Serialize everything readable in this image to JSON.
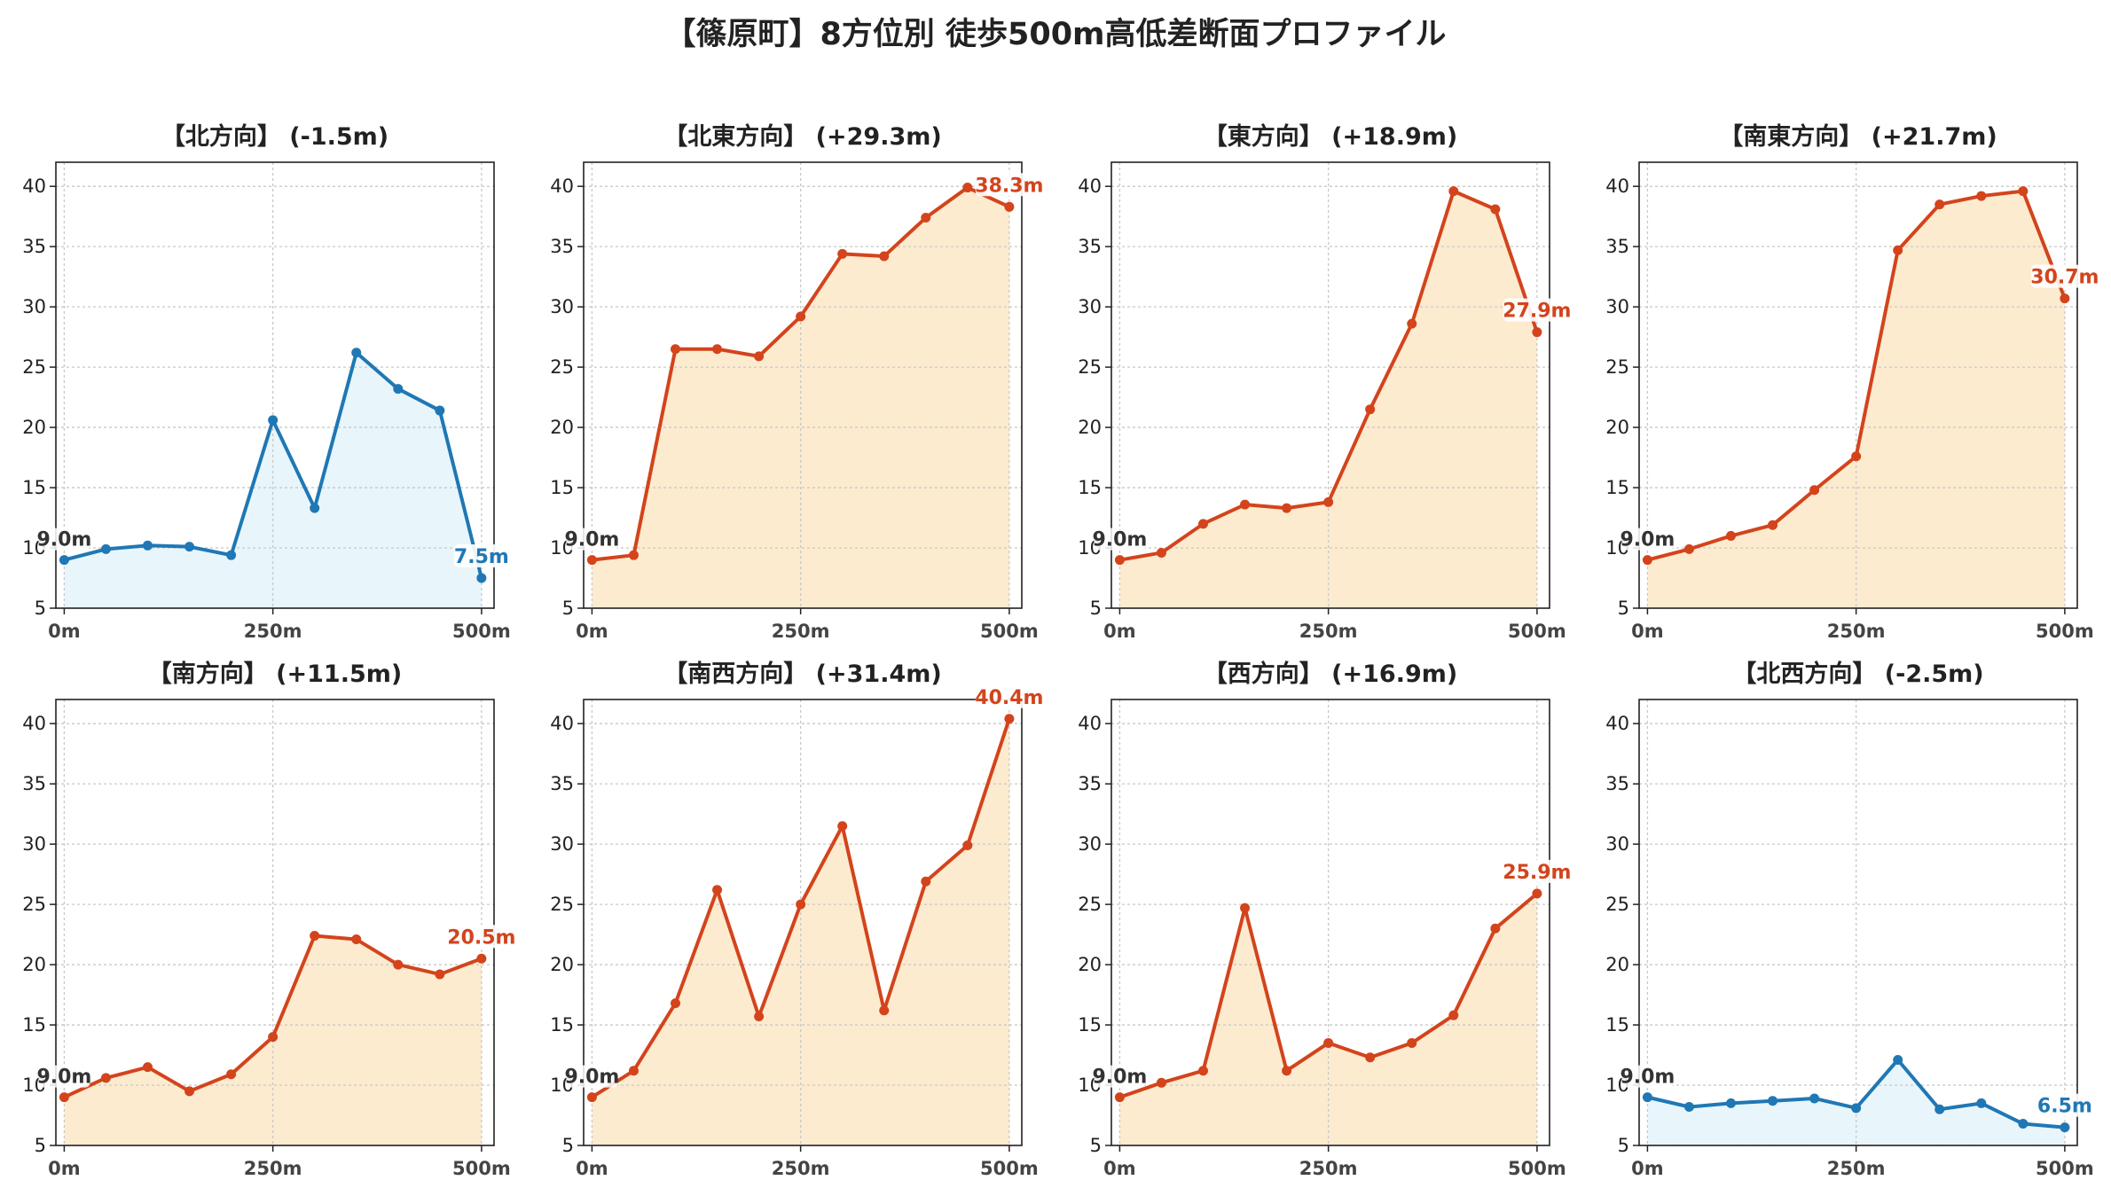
{
  "title": "【篠原町】8方位別 徒歩500m高低差断面プロファイル",
  "colors": {
    "up_line": "#d4441c",
    "up_fill": "#fdebd0",
    "down_line": "#1f77b4",
    "down_fill": "#e8f6fb",
    "grid": "#c8c8c8"
  },
  "chart_data": [
    {
      "type": "area",
      "title": "【北方向】 (-1.5m)",
      "x": [
        0,
        50,
        100,
        150,
        200,
        250,
        300,
        350,
        400,
        450,
        500
      ],
      "values": [
        9.0,
        9.9,
        10.2,
        10.1,
        9.4,
        20.6,
        13.3,
        26.2,
        23.2,
        21.4,
        7.5
      ],
      "start_label": "9.0m",
      "end_label": "7.5m",
      "trend": "down",
      "ylim": [
        5,
        42
      ],
      "yticks": [
        "5",
        "10",
        "15",
        "20",
        "25",
        "30",
        "35",
        "40"
      ],
      "xticks": [
        "0m",
        "250m",
        "500m"
      ],
      "grid": true
    },
    {
      "type": "area",
      "title": "【北東方向】 (+29.3m)",
      "x": [
        0,
        50,
        100,
        150,
        200,
        250,
        300,
        350,
        400,
        450,
        500
      ],
      "values": [
        9.0,
        9.4,
        26.5,
        26.5,
        25.9,
        29.2,
        34.4,
        34.2,
        37.4,
        39.9,
        38.3
      ],
      "start_label": "9.0m",
      "end_label": "38.3m",
      "trend": "up",
      "ylim": [
        5,
        42
      ],
      "yticks": [
        "5",
        "10",
        "15",
        "20",
        "25",
        "30",
        "35",
        "40"
      ],
      "xticks": [
        "0m",
        "250m",
        "500m"
      ],
      "grid": true
    },
    {
      "type": "area",
      "title": "【東方向】 (+18.9m)",
      "x": [
        0,
        50,
        100,
        150,
        200,
        250,
        300,
        350,
        400,
        450,
        500
      ],
      "values": [
        9.0,
        9.6,
        12.0,
        13.6,
        13.3,
        13.8,
        21.5,
        28.6,
        39.6,
        38.1,
        27.9
      ],
      "start_label": "9.0m",
      "end_label": "27.9m",
      "trend": "up",
      "ylim": [
        5,
        42
      ],
      "yticks": [
        "5",
        "10",
        "15",
        "20",
        "25",
        "30",
        "35",
        "40"
      ],
      "xticks": [
        "0m",
        "250m",
        "500m"
      ],
      "grid": true
    },
    {
      "type": "area",
      "title": "【南東方向】 (+21.7m)",
      "x": [
        0,
        50,
        100,
        150,
        200,
        250,
        300,
        350,
        400,
        450,
        500
      ],
      "values": [
        9.0,
        9.9,
        11.0,
        11.9,
        14.8,
        17.6,
        34.7,
        38.5,
        39.2,
        39.6,
        30.7
      ],
      "start_label": "9.0m",
      "end_label": "30.7m",
      "trend": "up",
      "ylim": [
        5,
        42
      ],
      "yticks": [
        "5",
        "10",
        "15",
        "20",
        "25",
        "30",
        "35",
        "40"
      ],
      "xticks": [
        "0m",
        "250m",
        "500m"
      ],
      "grid": true
    },
    {
      "type": "area",
      "title": "【南方向】 (+11.5m)",
      "x": [
        0,
        50,
        100,
        150,
        200,
        250,
        300,
        350,
        400,
        450,
        500
      ],
      "values": [
        9.0,
        10.6,
        11.5,
        9.5,
        10.9,
        14.0,
        22.4,
        22.1,
        20.0,
        19.2,
        20.5
      ],
      "start_label": "9.0m",
      "end_label": "20.5m",
      "trend": "up",
      "ylim": [
        5,
        42
      ],
      "yticks": [
        "5",
        "10",
        "15",
        "20",
        "25",
        "30",
        "35",
        "40"
      ],
      "xticks": [
        "0m",
        "250m",
        "500m"
      ],
      "grid": true
    },
    {
      "type": "area",
      "title": "【南西方向】 (+31.4m)",
      "x": [
        0,
        50,
        100,
        150,
        200,
        250,
        300,
        350,
        400,
        450,
        500
      ],
      "values": [
        9.0,
        11.2,
        16.8,
        26.2,
        15.7,
        25.0,
        31.5,
        16.2,
        26.9,
        29.9,
        40.4
      ],
      "start_label": "9.0m",
      "end_label": "40.4m",
      "trend": "up",
      "ylim": [
        5,
        42
      ],
      "yticks": [
        "5",
        "10",
        "15",
        "20",
        "25",
        "30",
        "35",
        "40"
      ],
      "xticks": [
        "0m",
        "250m",
        "500m"
      ],
      "grid": true
    },
    {
      "type": "area",
      "title": "【西方向】 (+16.9m)",
      "x": [
        0,
        50,
        100,
        150,
        200,
        250,
        300,
        350,
        400,
        450,
        500
      ],
      "values": [
        9.0,
        10.2,
        11.2,
        24.7,
        11.2,
        13.5,
        12.3,
        13.5,
        15.8,
        23.0,
        25.9
      ],
      "start_label": "9.0m",
      "end_label": "25.9m",
      "trend": "up",
      "ylim": [
        5,
        42
      ],
      "yticks": [
        "5",
        "10",
        "15",
        "20",
        "25",
        "30",
        "35",
        "40"
      ],
      "xticks": [
        "0m",
        "250m",
        "500m"
      ],
      "grid": true
    },
    {
      "type": "area",
      "title": "【北西方向】 (-2.5m)",
      "x": [
        0,
        50,
        100,
        150,
        200,
        250,
        300,
        350,
        400,
        450,
        500
      ],
      "values": [
        9.0,
        8.2,
        8.5,
        8.7,
        8.9,
        8.1,
        12.1,
        8.0,
        8.5,
        6.8,
        6.5
      ],
      "start_label": "9.0m",
      "end_label": "6.5m",
      "trend": "down",
      "ylim": [
        5,
        42
      ],
      "yticks": [
        "5",
        "10",
        "15",
        "20",
        "25",
        "30",
        "35",
        "40"
      ],
      "xticks": [
        "0m",
        "250m",
        "500m"
      ],
      "grid": true
    }
  ]
}
